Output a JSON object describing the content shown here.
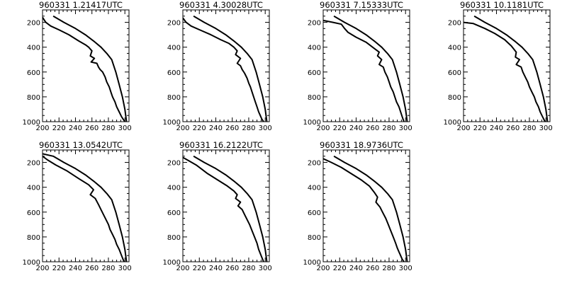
{
  "chart_data": [
    {
      "type": "line",
      "title": "960331   1.21417UTC",
      "xlim": [
        200,
        305
      ],
      "ylim": [
        1000,
        100
      ],
      "y_reversed": true,
      "xticks": [
        200,
        220,
        240,
        260,
        280,
        300
      ],
      "yticks": [
        200,
        400,
        600,
        800,
        1000
      ],
      "series": [
        {
          "x": [
            213,
            226,
            240,
            252,
            262,
            271,
            278,
            284,
            289,
            293,
            297,
            300,
            302
          ],
          "y": [
            150,
            200,
            250,
            300,
            350,
            400,
            450,
            500,
            600,
            700,
            800,
            900,
            1000
          ]
        },
        {
          "x": [
            200,
            204,
            210,
            220,
            232,
            244,
            252,
            256,
            260,
            258,
            263,
            259,
            266,
            268,
            270,
            273,
            276,
            278,
            281,
            283,
            285,
            288,
            290,
            293,
            296,
            300
          ],
          "y": [
            160,
            200,
            230,
            260,
            300,
            350,
            380,
            400,
            430,
            470,
            490,
            520,
            530,
            560,
            580,
            600,
            640,
            680,
            720,
            760,
            800,
            840,
            880,
            920,
            960,
            1000
          ]
        }
      ]
    },
    {
      "type": "line",
      "title": "960331   4.30028UTC",
      "xlim": [
        200,
        305
      ],
      "ylim": [
        1000,
        100
      ],
      "y_reversed": true,
      "xticks": [
        200,
        220,
        240,
        260,
        280,
        300
      ],
      "yticks": [
        200,
        400,
        600,
        800,
        1000
      ],
      "series": [
        {
          "x": [
            213,
            226,
            240,
            252,
            262,
            271,
            278,
            284,
            289,
            293,
            297,
            300,
            302
          ],
          "y": [
            150,
            200,
            250,
            300,
            350,
            400,
            450,
            500,
            600,
            700,
            800,
            900,
            1000
          ]
        },
        {
          "x": [
            200,
            204,
            210,
            222,
            234,
            246,
            256,
            262,
            266,
            264,
            270,
            266,
            270,
            272,
            275,
            278,
            280,
            282,
            284,
            286,
            288,
            290,
            292,
            294,
            296,
            298
          ],
          "y": [
            165,
            200,
            230,
            265,
            300,
            340,
            370,
            400,
            430,
            460,
            490,
            530,
            550,
            580,
            610,
            650,
            690,
            720,
            760,
            800,
            840,
            880,
            920,
            950,
            980,
            1000
          ]
        }
      ]
    },
    {
      "type": "line",
      "title": "960331   7.15333UTC",
      "xlim": [
        200,
        305
      ],
      "ylim": [
        1000,
        100
      ],
      "y_reversed": true,
      "xticks": [
        200,
        220,
        240,
        260,
        280,
        300
      ],
      "yticks": [
        200,
        400,
        600,
        800,
        1000
      ],
      "series": [
        {
          "x": [
            213,
            226,
            240,
            252,
            262,
            271,
            278,
            284,
            289,
            293,
            297,
            300,
            302
          ],
          "y": [
            150,
            200,
            250,
            300,
            350,
            400,
            450,
            500,
            600,
            700,
            800,
            900,
            1000
          ]
        },
        {
          "x": [
            200,
            212,
            222,
            226,
            230,
            240,
            252,
            262,
            268,
            266,
            271,
            268,
            273,
            275,
            278,
            280,
            282,
            285,
            287,
            289,
            292,
            294,
            296,
            298
          ],
          "y": [
            185,
            200,
            215,
            250,
            280,
            320,
            360,
            410,
            440,
            470,
            500,
            540,
            560,
            600,
            640,
            680,
            720,
            760,
            800,
            840,
            880,
            920,
            960,
            1000
          ]
        }
      ]
    },
    {
      "type": "line",
      "title": "960331   10.1181UTC",
      "xlim": [
        200,
        305
      ],
      "ylim": [
        1000,
        100
      ],
      "y_reversed": true,
      "xticks": [
        200,
        220,
        240,
        260,
        280,
        300
      ],
      "yticks": [
        200,
        400,
        600,
        800,
        1000
      ],
      "series": [
        {
          "x": [
            213,
            226,
            240,
            252,
            262,
            271,
            278,
            284,
            289,
            293,
            297,
            300,
            302
          ],
          "y": [
            150,
            200,
            250,
            300,
            350,
            400,
            450,
            500,
            600,
            700,
            800,
            900,
            1000
          ]
        },
        {
          "x": [
            200,
            212,
            226,
            238,
            250,
            258,
            264,
            263,
            268,
            264,
            270,
            272,
            275,
            278,
            280,
            283,
            286,
            288,
            291,
            293,
            296,
            299
          ],
          "y": [
            200,
            210,
            250,
            290,
            340,
            390,
            440,
            480,
            500,
            540,
            560,
            600,
            640,
            680,
            720,
            760,
            800,
            840,
            880,
            920,
            960,
            1000
          ]
        }
      ]
    },
    {
      "type": "line",
      "title": "960331   13.0542UTC",
      "xlim": [
        200,
        305
      ],
      "ylim": [
        1000,
        100
      ],
      "y_reversed": true,
      "xticks": [
        200,
        220,
        240,
        260,
        280,
        300
      ],
      "yticks": [
        200,
        400,
        600,
        800,
        1000
      ],
      "series": [
        {
          "x": [
            200,
            213,
            226,
            240,
            252,
            262,
            271,
            278,
            284,
            289,
            293,
            297,
            300,
            302
          ],
          "y": [
            130,
            150,
            200,
            250,
            300,
            350,
            400,
            450,
            500,
            600,
            700,
            800,
            900,
            1000
          ]
        },
        {
          "x": [
            200,
            206,
            216,
            230,
            244,
            256,
            262,
            258,
            264,
            268,
            271,
            274,
            277,
            280,
            282,
            285,
            288,
            290,
            293,
            296,
            299
          ],
          "y": [
            150,
            180,
            220,
            270,
            330,
            380,
            420,
            460,
            490,
            540,
            580,
            620,
            660,
            700,
            740,
            780,
            820,
            860,
            900,
            950,
            1000
          ]
        }
      ]
    },
    {
      "type": "line",
      "title": "960331   16.2122UTC",
      "xlim": [
        200,
        305
      ],
      "ylim": [
        1000,
        100
      ],
      "y_reversed": true,
      "xticks": [
        200,
        220,
        240,
        260,
        280,
        300
      ],
      "yticks": [
        200,
        400,
        600,
        800,
        1000
      ],
      "series": [
        {
          "x": [
            213,
            226,
            240,
            252,
            262,
            271,
            278,
            284,
            289,
            293,
            297,
            300,
            302
          ],
          "y": [
            150,
            200,
            250,
            300,
            350,
            400,
            450,
            500,
            600,
            700,
            800,
            900,
            1000
          ]
        },
        {
          "x": [
            200,
            208,
            216,
            222,
            230,
            242,
            254,
            262,
            266,
            264,
            270,
            267,
            272,
            275,
            278,
            281,
            284,
            287,
            290,
            292,
            295,
            298
          ],
          "y": [
            160,
            190,
            220,
            250,
            290,
            340,
            390,
            430,
            460,
            490,
            520,
            550,
            580,
            620,
            660,
            700,
            750,
            800,
            850,
            900,
            950,
            1000
          ]
        }
      ]
    },
    {
      "type": "line",
      "title": "960331   18.9736UTC",
      "xlim": [
        200,
        305
      ],
      "ylim": [
        1000,
        100
      ],
      "y_reversed": true,
      "xticks": [
        200,
        220,
        240,
        260,
        280,
        300
      ],
      "yticks": [
        200,
        400,
        600,
        800,
        1000
      ],
      "series": [
        {
          "x": [
            213,
            226,
            240,
            252,
            262,
            271,
            278,
            284,
            289,
            293,
            297,
            300,
            302
          ],
          "y": [
            150,
            200,
            250,
            300,
            350,
            400,
            450,
            500,
            600,
            700,
            800,
            900,
            1000
          ]
        },
        {
          "x": [
            200,
            210,
            222,
            234,
            246,
            256,
            262,
            266,
            264,
            269,
            272,
            276,
            279,
            282,
            285,
            288,
            290,
            292,
            294,
            296,
            298
          ],
          "y": [
            170,
            200,
            240,
            290,
            340,
            390,
            440,
            480,
            520,
            560,
            600,
            650,
            700,
            750,
            800,
            850,
            890,
            920,
            950,
            980,
            1000
          ]
        }
      ]
    }
  ]
}
